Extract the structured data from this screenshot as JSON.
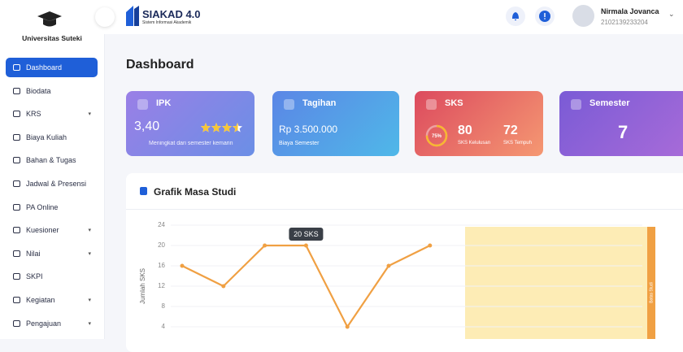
{
  "sidebar": {
    "logo": "Universitas Suteki",
    "menu": [
      {
        "label": "Dashboard",
        "active": true
      },
      {
        "label": "Biodata"
      },
      {
        "label": "KRS",
        "dropdown": true
      },
      {
        "label": "Biaya Kuliah"
      },
      {
        "label": "Bahan & Tugas"
      },
      {
        "label": "Jadwal & Presensi"
      },
      {
        "label": "PA Online"
      },
      {
        "label": "Kuesioner",
        "dropdown": true
      },
      {
        "label": "Nilai",
        "dropdown": true
      },
      {
        "label": "SKPI"
      },
      {
        "label": "Kegiatan",
        "dropdown": true
      },
      {
        "label": "Pengajuan",
        "dropdown": true
      }
    ]
  },
  "header": {
    "brand": "SIAKAD 4.0",
    "brand_sub": "Sistem Informasi Akademik",
    "user_name": "Nirmala Jovanca",
    "user_id": "2102139233204"
  },
  "page_title": "Dashboard",
  "cards": [
    {
      "title": "IPK",
      "value": "3,40",
      "stars": 3.5,
      "note": "Meningkat dari semester kemarin"
    },
    {
      "title": "Tagihan",
      "value": "Rp 3.500.000",
      "note": "Biaya Semester"
    },
    {
      "title": "SKS",
      "progress": {
        "value": 75,
        "label": "75%"
      },
      "stats": [
        {
          "value": 80,
          "label": "SKS Kelulusan"
        },
        {
          "value": 72,
          "label": "SKS Tempuh"
        }
      ]
    },
    {
      "title": "Semester",
      "value": 7
    }
  ],
  "chart_data": {
    "type": "line",
    "title": "Grafik Masa Studi",
    "y_label": "Jumlah SKS",
    "categories": [
      null,
      null,
      null,
      null,
      null,
      null,
      null
    ],
    "values": [
      16,
      12,
      20,
      20,
      4,
      16,
      20
    ],
    "color": "#f0a043",
    "ylim": [
      0,
      24
    ],
    "yticks": [
      4,
      8,
      12,
      16,
      20,
      24
    ],
    "grid": true,
    "tooltip": "20 SKS",
    "limit_label": "Batas Studi"
  }
}
